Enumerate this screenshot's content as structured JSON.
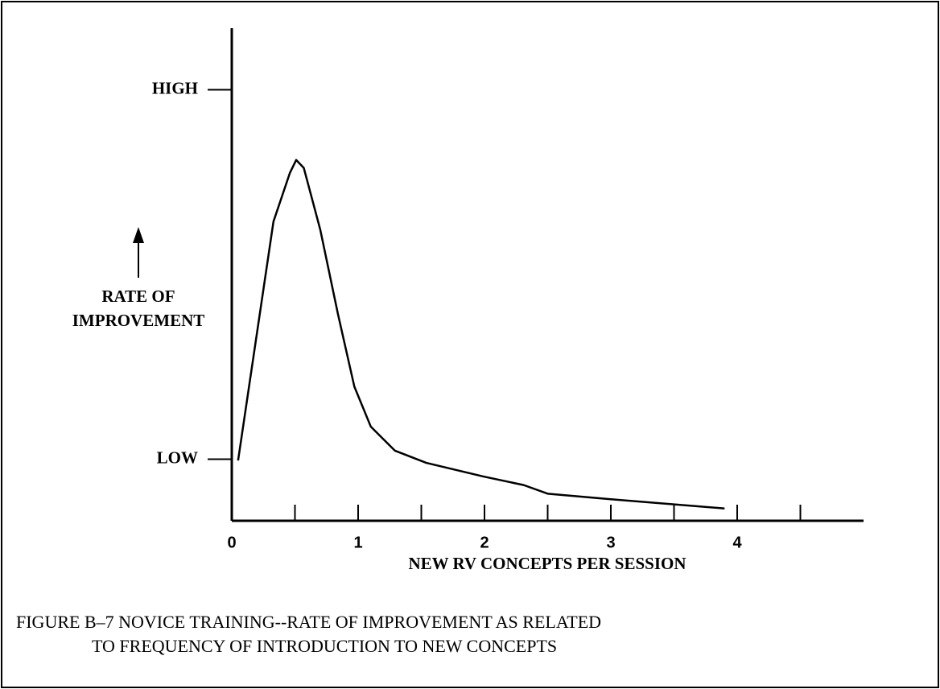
{
  "chart_data": {
    "type": "line",
    "caption": [
      "FIGURE B–7  NOVICE TRAINING--RATE OF IMPROVEMENT AS RELATED",
      "TO FREQUENCY OF INTRODUCTION TO NEW CONCEPTS"
    ],
    "xlabel": "NEW RV CONCEPTS PER SESSION",
    "ylabel": [
      "RATE OF",
      "IMPROVEMENT"
    ],
    "xlim": [
      0,
      5
    ],
    "xticks": [
      0,
      1,
      2,
      3,
      4
    ],
    "minor_xticks": [
      0.5,
      1.5,
      2.5,
      3.5,
      4.5
    ],
    "ylim": [
      0,
      8
    ],
    "yticks": [
      {
        "value": 1,
        "label": "LOW"
      },
      {
        "value": 7,
        "label": "HIGH"
      }
    ],
    "color": "#000000",
    "series": [
      {
        "x": [
          0.05,
          0.33,
          0.46,
          0.51,
          0.57,
          0.7,
          0.84,
          0.97,
          1.1,
          1.29,
          1.54,
          1.99,
          2.31,
          2.5,
          3.0,
          3.9
        ],
        "values": [
          0.98,
          4.86,
          5.65,
          5.86,
          5.73,
          4.73,
          3.36,
          2.18,
          1.53,
          1.14,
          0.94,
          0.72,
          0.58,
          0.44,
          0.35,
          0.2
        ]
      }
    ]
  }
}
